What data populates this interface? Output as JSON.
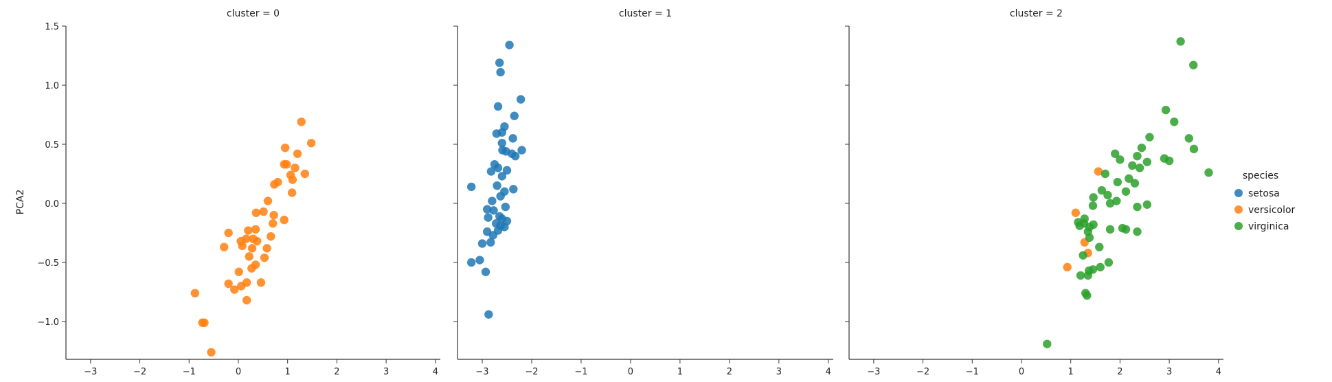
{
  "chart_data": {
    "type": "scatter",
    "ylabel": "PCA2",
    "xlabel": "",
    "xlim": [
      -3.5,
      4.1
    ],
    "ylim": [
      -1.32,
      1.5
    ],
    "xticks": [
      "−3",
      "−2",
      "−1",
      "0",
      "1",
      "2",
      "3",
      "4"
    ],
    "yticks": [
      "−1.0",
      "−0.5",
      "0.0",
      "0.5",
      "1.0",
      "1.5"
    ],
    "xtick_values": [
      -3,
      -2,
      -1,
      0,
      1,
      2,
      3,
      4
    ],
    "ytick_values": [
      -1.0,
      -0.5,
      0.0,
      0.5,
      1.0,
      1.5
    ],
    "legend": {
      "title": "species",
      "placement": "right",
      "entries": [
        {
          "name": "setosa",
          "color": "#1f77b4"
        },
        {
          "name": "versicolor",
          "color": "#ff7f0e"
        },
        {
          "name": "virginica",
          "color": "#2ca02c"
        }
      ]
    },
    "panels": [
      {
        "title": "cluster = 0",
        "series": [
          {
            "name": "versicolor",
            "color": "#ff7f0e",
            "points": [
              [
                1.28,
                0.69
              ],
              [
                1.48,
                0.51
              ],
              [
                1.2,
                0.42
              ],
              [
                0.95,
                0.47
              ],
              [
                0.93,
                0.33
              ],
              [
                0.98,
                0.33
              ],
              [
                1.15,
                0.3
              ],
              [
                1.06,
                0.24
              ],
              [
                1.35,
                0.25
              ],
              [
                1.1,
                0.2
              ],
              [
                0.8,
                0.18
              ],
              [
                0.73,
                0.16
              ],
              [
                0.6,
                0.02
              ],
              [
                1.09,
                0.09
              ],
              [
                0.72,
                -0.1
              ],
              [
                0.51,
                -0.07
              ],
              [
                0.36,
                -0.08
              ],
              [
                0.93,
                -0.14
              ],
              [
                0.7,
                -0.17
              ],
              [
                0.2,
                -0.23
              ],
              [
                0.35,
                -0.22
              ],
              [
                0.66,
                -0.28
              ],
              [
                0.3,
                -0.3
              ],
              [
                0.16,
                -0.3
              ],
              [
                -0.2,
                -0.25
              ],
              [
                0.05,
                -0.32
              ],
              [
                0.38,
                -0.32
              ],
              [
                0.28,
                -0.38
              ],
              [
                0.08,
                -0.36
              ],
              [
                0.58,
                -0.38
              ],
              [
                0.22,
                -0.45
              ],
              [
                0.53,
                -0.46
              ],
              [
                -0.29,
                -0.37
              ],
              [
                0.35,
                -0.52
              ],
              [
                0.27,
                -0.55
              ],
              [
                0.01,
                -0.58
              ],
              [
                0.46,
                -0.67
              ],
              [
                -0.2,
                -0.68
              ],
              [
                0.06,
                -0.7
              ],
              [
                -0.08,
                -0.73
              ],
              [
                0.17,
                -0.67
              ],
              [
                0.17,
                -0.82
              ],
              [
                -0.88,
                -0.76
              ],
              [
                -0.73,
                -1.01
              ],
              [
                -0.69,
                -1.01
              ],
              [
                -0.55,
                -1.26
              ]
            ]
          }
        ]
      },
      {
        "title": "cluster = 1",
        "series": [
          {
            "name": "setosa",
            "color": "#1f77b4",
            "points": [
              [
                -2.45,
                1.34
              ],
              [
                -2.65,
                1.19
              ],
              [
                -2.63,
                1.11
              ],
              [
                -2.22,
                0.88
              ],
              [
                -2.68,
                0.82
              ],
              [
                -2.35,
                0.74
              ],
              [
                -2.55,
                0.65
              ],
              [
                -2.6,
                0.6
              ],
              [
                -2.71,
                0.59
              ],
              [
                -2.38,
                0.55
              ],
              [
                -2.6,
                0.51
              ],
              [
                -2.59,
                0.45
              ],
              [
                -2.2,
                0.45
              ],
              [
                -2.52,
                0.44
              ],
              [
                -2.4,
                0.42
              ],
              [
                -2.33,
                0.4
              ],
              [
                -2.75,
                0.33
              ],
              [
                -2.82,
                0.27
              ],
              [
                -2.68,
                0.3
              ],
              [
                -2.5,
                0.28
              ],
              [
                -2.6,
                0.23
              ],
              [
                -2.7,
                0.15
              ],
              [
                -2.55,
                0.1
              ],
              [
                -2.37,
                0.12
              ],
              [
                -2.63,
                0.06
              ],
              [
                -2.8,
                0.02
              ],
              [
                -2.53,
                -0.03
              ],
              [
                -3.22,
                0.14
              ],
              [
                -2.9,
                -0.05
              ],
              [
                -2.77,
                -0.06
              ],
              [
                -2.65,
                -0.11
              ],
              [
                -2.88,
                -0.12
              ],
              [
                -2.6,
                -0.13
              ],
              [
                -2.5,
                -0.15
              ],
              [
                -2.72,
                -0.17
              ],
              [
                -2.63,
                -0.19
              ],
              [
                -2.55,
                -0.2
              ],
              [
                -2.9,
                -0.24
              ],
              [
                -2.78,
                -0.27
              ],
              [
                -2.68,
                -0.23
              ],
              [
                -2.83,
                -0.33
              ],
              [
                -3.0,
                -0.34
              ],
              [
                -3.22,
                -0.5
              ],
              [
                -3.05,
                -0.48
              ],
              [
                -2.93,
                -0.58
              ],
              [
                -2.87,
                -0.94
              ]
            ]
          }
        ]
      },
      {
        "title": "cluster = 2",
        "series": [
          {
            "name": "versicolor",
            "color": "#ff7f0e",
            "points": [
              [
                1.56,
                0.27
              ],
              [
                1.1,
                -0.08
              ],
              [
                1.28,
                -0.33
              ],
              [
                1.35,
                -0.42
              ],
              [
                0.93,
                -0.54
              ]
            ]
          },
          {
            "name": "virginica",
            "color": "#2ca02c",
            "points": [
              [
                3.23,
                1.37
              ],
              [
                3.49,
                1.17
              ],
              [
                2.93,
                0.79
              ],
              [
                3.1,
                0.69
              ],
              [
                3.4,
                0.55
              ],
              [
                2.6,
                0.56
              ],
              [
                2.44,
                0.47
              ],
              [
                3.5,
                0.46
              ],
              [
                1.9,
                0.42
              ],
              [
                2.35,
                0.4
              ],
              [
                2.0,
                0.37
              ],
              [
                2.9,
                0.38
              ],
              [
                3.0,
                0.36
              ],
              [
                2.55,
                0.35
              ],
              [
                2.25,
                0.32
              ],
              [
                2.4,
                0.3
              ],
              [
                3.8,
                0.26
              ],
              [
                1.7,
                0.25
              ],
              [
                2.18,
                0.21
              ],
              [
                1.95,
                0.18
              ],
              [
                2.3,
                0.17
              ],
              [
                1.63,
                0.11
              ],
              [
                2.12,
                0.1
              ],
              [
                1.75,
                0.07
              ],
              [
                1.93,
                0.02
              ],
              [
                1.46,
                0.05
              ],
              [
                1.8,
                0.0
              ],
              [
                2.35,
                -0.03
              ],
              [
                2.55,
                -0.01
              ],
              [
                1.45,
                -0.02
              ],
              [
                1.28,
                -0.13
              ],
              [
                1.46,
                -0.18
              ],
              [
                1.38,
                -0.2
              ],
              [
                1.15,
                -0.16
              ],
              [
                1.27,
                -0.17
              ],
              [
                1.18,
                -0.19
              ],
              [
                1.35,
                -0.24
              ],
              [
                2.05,
                -0.21
              ],
              [
                2.12,
                -0.22
              ],
              [
                1.8,
                -0.22
              ],
              [
                2.35,
                -0.24
              ],
              [
                1.38,
                -0.29
              ],
              [
                1.58,
                -0.37
              ],
              [
                1.25,
                -0.44
              ],
              [
                1.77,
                -0.5
              ],
              [
                1.6,
                -0.54
              ],
              [
                1.45,
                -0.56
              ],
              [
                1.37,
                -0.57
              ],
              [
                1.2,
                -0.61
              ],
              [
                1.35,
                -0.61
              ],
              [
                1.3,
                -0.76
              ],
              [
                1.33,
                -0.78
              ],
              [
                0.52,
                -1.19
              ]
            ]
          }
        ]
      }
    ]
  }
}
